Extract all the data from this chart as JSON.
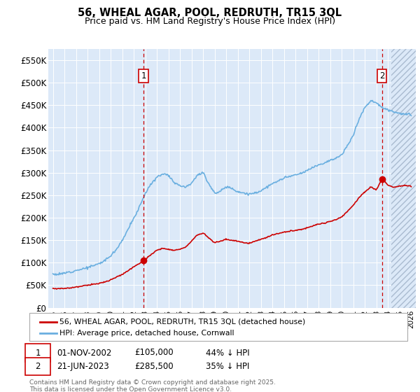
{
  "title": "56, WHEAL AGAR, POOL, REDRUTH, TR15 3QL",
  "subtitle": "Price paid vs. HM Land Registry's House Price Index (HPI)",
  "ylim": [
    0,
    575000
  ],
  "yticks": [
    0,
    50000,
    100000,
    150000,
    200000,
    250000,
    300000,
    350000,
    400000,
    450000,
    500000,
    550000
  ],
  "ytick_labels": [
    "£0",
    "£50K",
    "£100K",
    "£150K",
    "£200K",
    "£250K",
    "£300K",
    "£350K",
    "£400K",
    "£450K",
    "£500K",
    "£550K"
  ],
  "xlim_start": 1994.6,
  "xlim_end": 2026.4,
  "background_color": "#dce9f8",
  "grid_color": "#ffffff",
  "hpi_line_color": "#6aafe0",
  "price_line_color": "#cc0000",
  "marker1_date": 2002.836,
  "marker1_price": 105000,
  "marker2_date": 2023.472,
  "marker2_price": 285500,
  "future_start": 2024.25,
  "legend_label_price": "56, WHEAL AGAR, POOL, REDRUTH, TR15 3QL (detached house)",
  "legend_label_hpi": "HPI: Average price, detached house, Cornwall",
  "footnote1_label": "1",
  "footnote1_date": "01-NOV-2002",
  "footnote1_price": "£105,000",
  "footnote1_note": "44% ↓ HPI",
  "footnote2_label": "2",
  "footnote2_date": "21-JUN-2023",
  "footnote2_price": "£285,500",
  "footnote2_note": "35% ↓ HPI",
  "copyright_text": "Contains HM Land Registry data © Crown copyright and database right 2025.\nThis data is licensed under the Open Government Licence v3.0."
}
